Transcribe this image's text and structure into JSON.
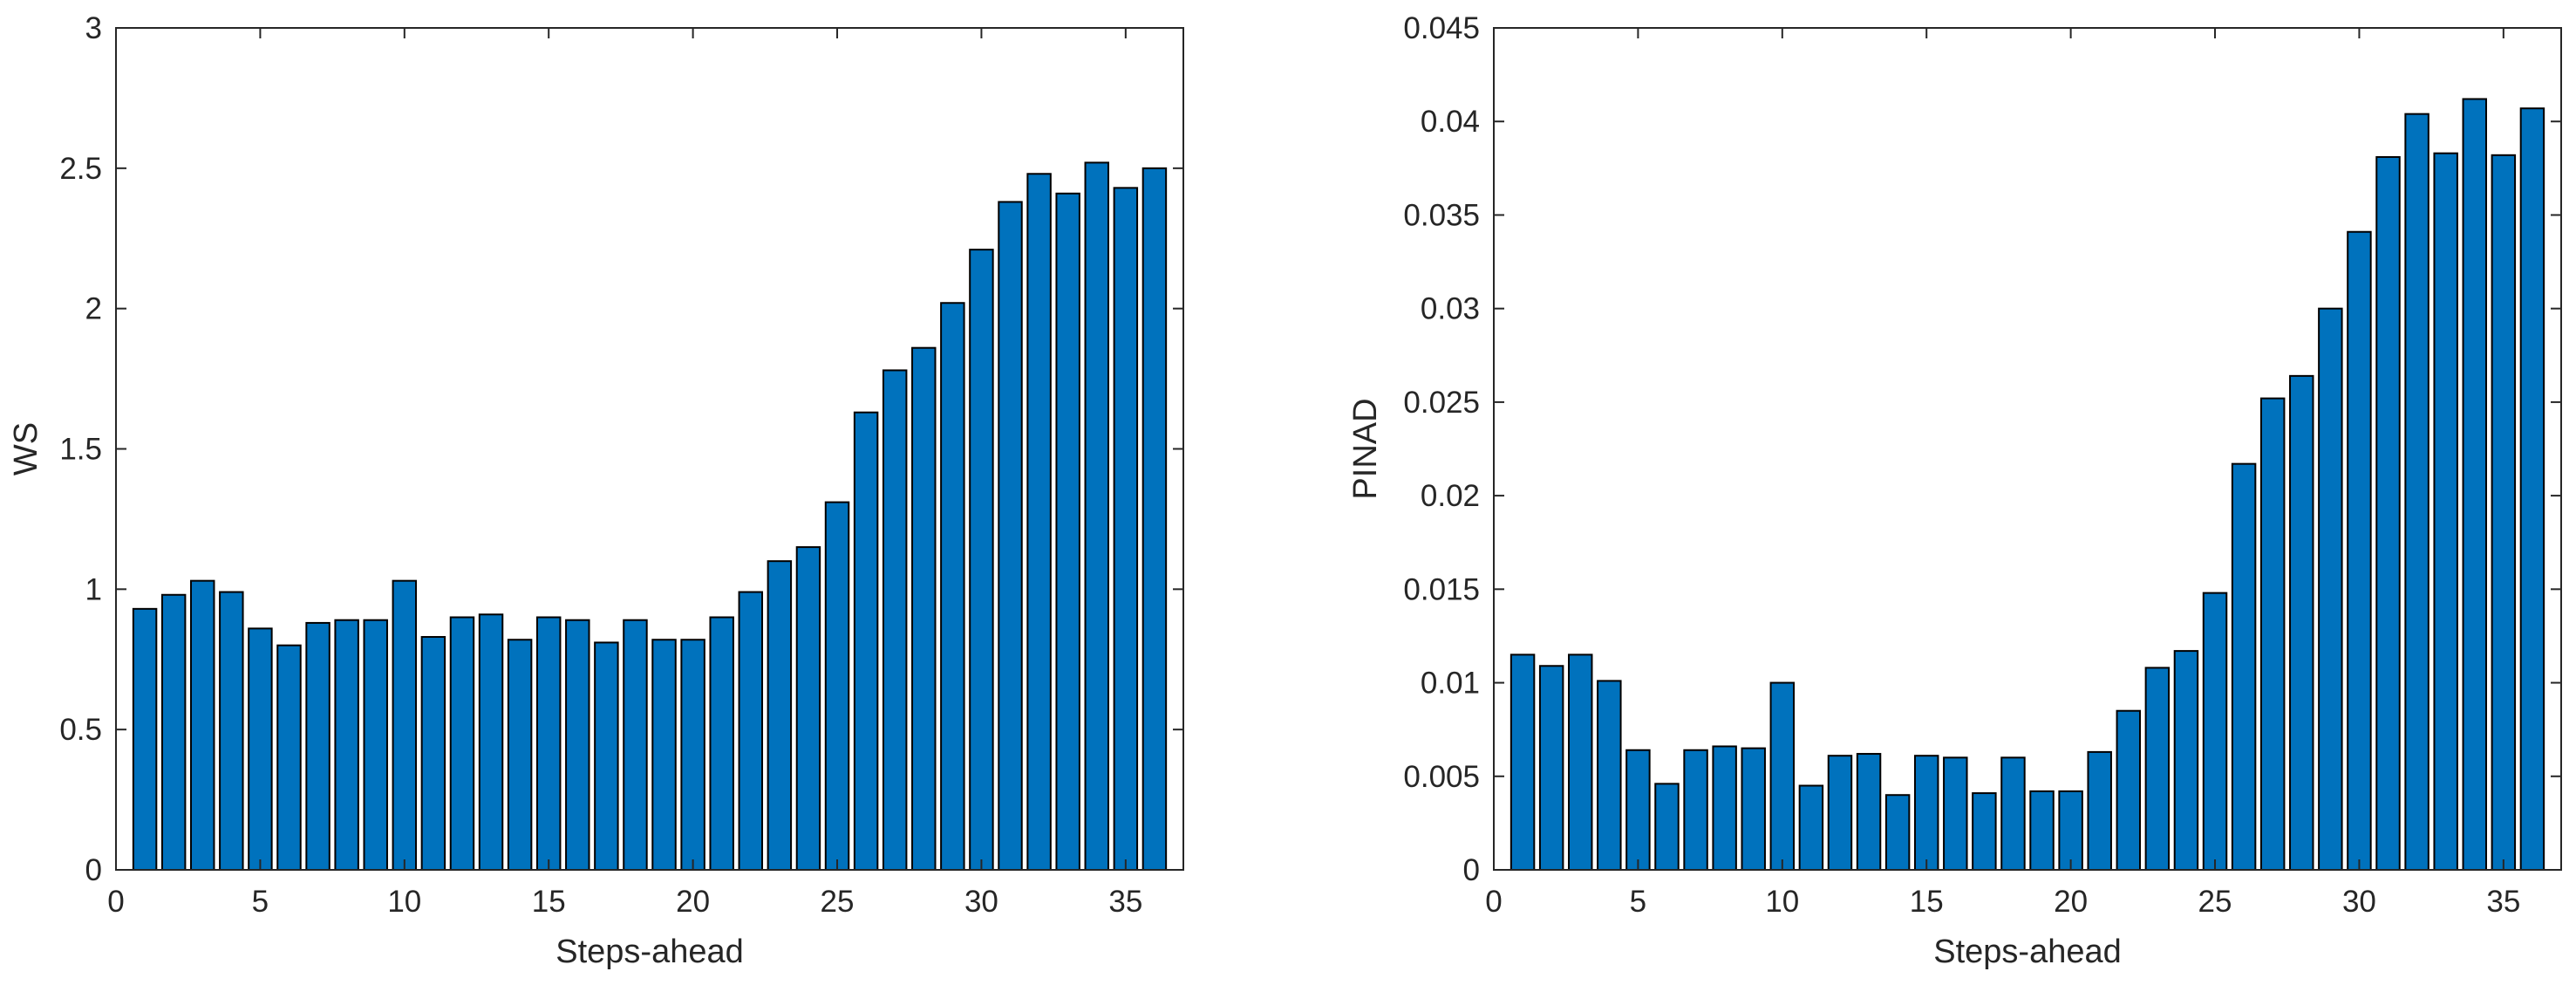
{
  "colors": {
    "bar_fill": "#0072bd",
    "bar_edge": "#000000",
    "axes": "#262626",
    "background": "#ffffff"
  },
  "chart_data": [
    {
      "type": "bar",
      "title": "",
      "xlabel": "Steps-ahead",
      "ylabel": "WS",
      "xlim": [
        0,
        37
      ],
      "ylim": [
        0,
        3
      ],
      "xticks": [
        0,
        5,
        10,
        15,
        20,
        25,
        30,
        35
      ],
      "xtick_labels": [
        "0",
        "5",
        "10",
        "15",
        "20",
        "25",
        "30",
        "35"
      ],
      "yticks": [
        0,
        0.5,
        1,
        1.5,
        2,
        2.5,
        3
      ],
      "ytick_labels": [
        "0",
        "0.5",
        "1",
        "1.5",
        "2",
        "2.5",
        "3"
      ],
      "grid": false,
      "x": [
        1,
        2,
        3,
        4,
        5,
        6,
        7,
        8,
        9,
        10,
        11,
        12,
        13,
        14,
        15,
        16,
        17,
        18,
        19,
        20,
        21,
        22,
        23,
        24,
        25,
        26,
        27,
        28,
        29,
        30,
        31,
        32,
        33,
        34,
        35,
        36
      ],
      "values": [
        0.93,
        0.98,
        1.03,
        0.99,
        0.86,
        0.8,
        0.88,
        0.89,
        0.89,
        1.03,
        0.83,
        0.9,
        0.91,
        0.82,
        0.9,
        0.89,
        0.81,
        0.89,
        0.82,
        0.82,
        0.9,
        0.99,
        1.1,
        1.15,
        1.31,
        1.63,
        1.78,
        1.86,
        2.02,
        2.21,
        2.38,
        2.48,
        2.41,
        2.52,
        2.43,
        2.5
      ]
    },
    {
      "type": "bar",
      "title": "",
      "xlabel": "Steps-ahead",
      "ylabel": "PINAD",
      "xlim": [
        0,
        37
      ],
      "ylim": [
        0,
        0.045
      ],
      "xticks": [
        0,
        5,
        10,
        15,
        20,
        25,
        30,
        35
      ],
      "xtick_labels": [
        "0",
        "5",
        "10",
        "15",
        "20",
        "25",
        "30",
        "35"
      ],
      "yticks": [
        0,
        0.005,
        0.01,
        0.015,
        0.02,
        0.025,
        0.03,
        0.035,
        0.04,
        0.045
      ],
      "ytick_labels": [
        "0",
        "0.005",
        "0.01",
        "0.015",
        "0.02",
        "0.025",
        "0.03",
        "0.035",
        "0.04",
        "0.045"
      ],
      "grid": false,
      "x": [
        1,
        2,
        3,
        4,
        5,
        6,
        7,
        8,
        9,
        10,
        11,
        12,
        13,
        14,
        15,
        16,
        17,
        18,
        19,
        20,
        21,
        22,
        23,
        24,
        25,
        26,
        27,
        28,
        29,
        30,
        31,
        32,
        33,
        34,
        35,
        36
      ],
      "values": [
        0.0115,
        0.0109,
        0.0115,
        0.0101,
        0.0064,
        0.0046,
        0.0064,
        0.0066,
        0.0065,
        0.01,
        0.0045,
        0.0061,
        0.0062,
        0.004,
        0.0061,
        0.006,
        0.0041,
        0.006,
        0.0042,
        0.0042,
        0.0063,
        0.0085,
        0.0108,
        0.0117,
        0.0148,
        0.0217,
        0.0252,
        0.0264,
        0.03,
        0.0341,
        0.0381,
        0.0404,
        0.0383,
        0.0412,
        0.0382,
        0.0407
      ]
    }
  ]
}
